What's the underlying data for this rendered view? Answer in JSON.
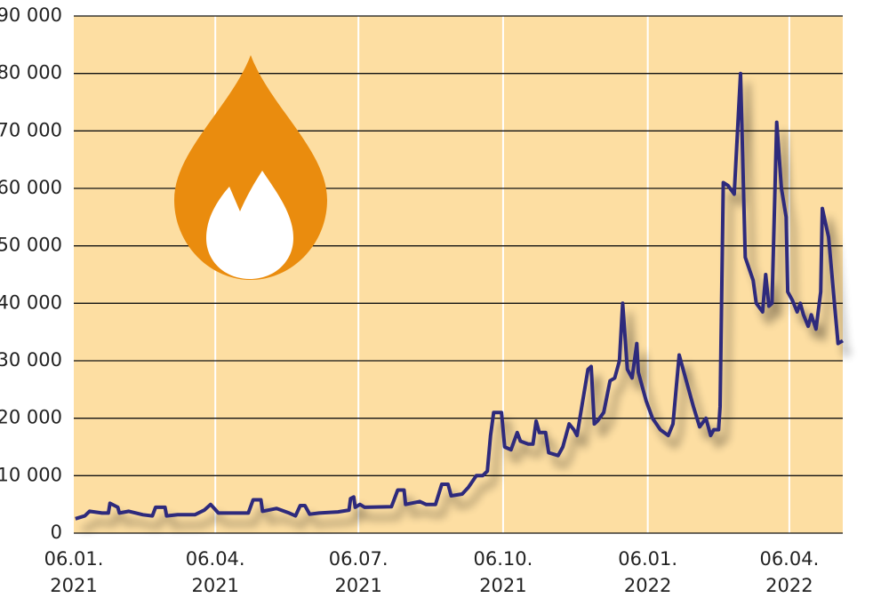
{
  "chart_data": {
    "type": "line",
    "xlim": [
      "2021-01-06",
      "2022-05-10"
    ],
    "xticks": [
      {
        "value": "2021-01-06",
        "label": [
          "06.01.",
          "2021"
        ]
      },
      {
        "value": "2021-04-06",
        "label": [
          "06.04.",
          "2021"
        ]
      },
      {
        "value": "2021-07-06",
        "label": [
          "06.07.",
          "2021"
        ]
      },
      {
        "value": "2021-10-06",
        "label": [
          "06.10.",
          "2021"
        ]
      },
      {
        "value": "2022-01-06",
        "label": [
          "06.01.",
          "2022"
        ]
      },
      {
        "value": "2022-04-06",
        "label": [
          "06.04.",
          "2022"
        ]
      }
    ],
    "ylim": [
      0,
      90000
    ],
    "yticks": [
      0,
      {
        "value": 10000,
        "label": "10 000"
      },
      {
        "value": 20000,
        "label": "20 000"
      },
      {
        "value": 30000,
        "label": "30 000"
      },
      {
        "value": 40000,
        "label": "40 000"
      },
      {
        "value": 50000,
        "label": "50 000"
      },
      {
        "value": 60000,
        "label": "60 000"
      },
      {
        "value": 70000,
        "label": "70 000"
      },
      {
        "value": 80000,
        "label": "80 000"
      },
      {
        "value": 90000,
        "label": "90 000"
      }
    ],
    "grid": true,
    "x": [
      "2021-01-07",
      "2021-01-13",
      "2021-01-16",
      "2021-01-24",
      "2021-01-28",
      "2021-01-29",
      "2021-02-03",
      "2021-02-04",
      "2021-02-10",
      "2021-02-19",
      "2021-02-25",
      "2021-02-27",
      "2021-03-05",
      "2021-03-06",
      "2021-03-13",
      "2021-03-24",
      "2021-03-30",
      "2021-04-03",
      "2021-04-08",
      "2021-04-19",
      "2021-04-27",
      "2021-04-30",
      "2021-05-05",
      "2021-05-06",
      "2021-05-15",
      "2021-05-23",
      "2021-05-27",
      "2021-05-30",
      "2021-06-02",
      "2021-06-05",
      "2021-06-11",
      "2021-06-23",
      "2021-06-30",
      "2021-07-01",
      "2021-07-03",
      "2021-07-04",
      "2021-07-07",
      "2021-07-10",
      "2021-07-27",
      "2021-07-31",
      "2021-08-04",
      "2021-08-05",
      "2021-08-14",
      "2021-08-18",
      "2021-08-24",
      "2021-08-28",
      "2021-09-01",
      "2021-09-03",
      "2021-09-10",
      "2021-09-14",
      "2021-09-16",
      "2021-09-19",
      "2021-09-23",
      "2021-09-26",
      "2021-09-28",
      "2021-09-30",
      "2021-10-05",
      "2021-10-07",
      "2021-10-11",
      "2021-10-15",
      "2021-10-17",
      "2021-10-22",
      "2021-10-25",
      "2021-10-27",
      "2021-10-29",
      "2021-11-02",
      "2021-11-04",
      "2021-11-10",
      "2021-11-13",
      "2021-11-17",
      "2021-11-20",
      "2021-11-22",
      "2021-11-25",
      "2021-11-29",
      "2021-12-01",
      "2021-12-03",
      "2021-12-05",
      "2021-12-09",
      "2021-12-13",
      "2021-12-16",
      "2021-12-19",
      "2021-12-21",
      "2021-12-24",
      "2021-12-27",
      "2021-12-30",
      "2021-12-31",
      "2022-01-05",
      "2022-01-09",
      "2022-01-14",
      "2022-01-19",
      "2022-01-22",
      "2022-01-26",
      "2022-01-30",
      "2022-02-04",
      "2022-02-08",
      "2022-02-12",
      "2022-02-15",
      "2022-02-17",
      "2022-02-20",
      "2022-02-21",
      "2022-02-23",
      "2022-02-26",
      "2022-03-02",
      "2022-03-06",
      "2022-03-09",
      "2022-03-14",
      "2022-03-16",
      "2022-03-20",
      "2022-03-22",
      "2022-03-24",
      "2022-03-26",
      "2022-03-29",
      "2022-04-01",
      "2022-04-04",
      "2022-04-05",
      "2022-04-08",
      "2022-04-11",
      "2022-04-13",
      "2022-04-15",
      "2022-04-18",
      "2022-04-20",
      "2022-04-23",
      "2022-04-26",
      "2022-04-27",
      "2022-04-29",
      "2022-05-01",
      "2022-05-05",
      "2022-05-07",
      "2022-05-10"
    ],
    "series": [
      {
        "color": "#2d2a7c",
        "values": [
          2500,
          3000,
          3800,
          3500,
          3500,
          5200,
          4500,
          3500,
          3800,
          3200,
          3000,
          4500,
          4500,
          3000,
          3200,
          3200,
          4000,
          5000,
          3500,
          3500,
          3500,
          5800,
          5800,
          3800,
          4300,
          3500,
          3000,
          4800,
          4800,
          3300,
          3500,
          3700,
          4000,
          6000,
          6300,
          4500,
          5000,
          4500,
          4600,
          7500,
          7500,
          5000,
          5500,
          5000,
          5000,
          8500,
          8500,
          6500,
          6800,
          8000,
          8800,
          10000,
          10000,
          10800,
          17000,
          21000,
          21000,
          15000,
          14500,
          17500,
          16000,
          15500,
          15500,
          19500,
          17500,
          17500,
          14000,
          13500,
          15000,
          19000,
          18000,
          17000,
          22000,
          28500,
          29000,
          19000,
          19500,
          21000,
          26500,
          27000,
          30000,
          40000,
          28500,
          27000,
          33000,
          28000,
          23000,
          20000,
          18000,
          17000,
          19000,
          31000,
          27000,
          22000,
          18500,
          20000,
          17000,
          18000,
          18000,
          22000,
          61000,
          60500,
          59000,
          80000,
          48000,
          44000,
          40000,
          38500,
          45000,
          39500,
          40000,
          71500,
          60000,
          55000,
          42000,
          40500,
          38500,
          40000,
          38000,
          36000,
          38000,
          35500,
          42000,
          56500,
          54000,
          51500,
          39000,
          33000,
          33500
        ]
      }
    ]
  }
}
